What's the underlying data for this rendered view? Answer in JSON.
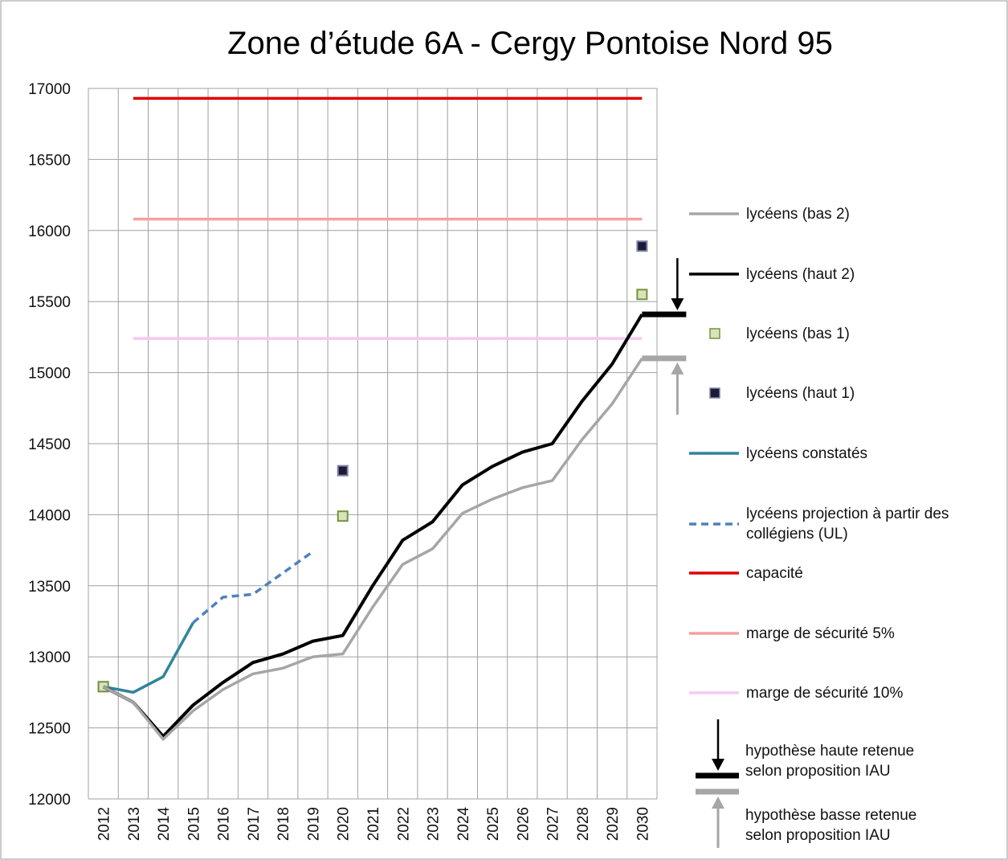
{
  "chart_data": {
    "type": "line",
    "title": "Zone d’étude 6A - Cergy Pontoise Nord 95",
    "categories": [
      "2012",
      "2013",
      "2014",
      "2015",
      "2016",
      "2017",
      "2018",
      "2019",
      "2020",
      "2021",
      "2022",
      "2023",
      "2024",
      "2025",
      "2026",
      "2027",
      "2028",
      "2029",
      "2030"
    ],
    "ylim": [
      12000,
      17000
    ],
    "yticks": [
      12000,
      12500,
      13000,
      13500,
      14000,
      14500,
      15000,
      15500,
      16000,
      16500,
      17000
    ],
    "grid": true,
    "series": [
      {
        "name": "lycéens (bas 2)",
        "color": "#a6a6a6",
        "style": "solid",
        "values": [
          12790,
          12680,
          12420,
          12620,
          12770,
          12880,
          12920,
          13000,
          13020,
          13350,
          13650,
          13760,
          14010,
          14110,
          14190,
          14240,
          14530,
          14780,
          15100
        ]
      },
      {
        "name": "lycéens (haut 2)",
        "color": "#000000",
        "style": "solid",
        "values": [
          12790,
          12680,
          12440,
          12660,
          12820,
          12960,
          13020,
          13110,
          13150,
          13500,
          13820,
          13950,
          14210,
          14340,
          14440,
          14500,
          14800,
          15060,
          15410
        ]
      },
      {
        "name": "lycéens (bas 1)",
        "color": "#d7e4bd",
        "edge_color": "#77933c",
        "style": "marker",
        "values": [
          12790,
          null,
          null,
          null,
          null,
          null,
          null,
          null,
          13990,
          null,
          null,
          null,
          null,
          null,
          null,
          null,
          null,
          null,
          15550
        ]
      },
      {
        "name": "lycéens (haut 1)",
        "color": "#1a1a3a",
        "edge_color": "#8080a0",
        "style": "marker",
        "values": [
          12790,
          null,
          null,
          null,
          null,
          null,
          null,
          null,
          14310,
          null,
          null,
          null,
          null,
          null,
          null,
          null,
          null,
          null,
          15890
        ]
      },
      {
        "name": "lycéens constatés",
        "color": "#31849b",
        "style": "solid",
        "values": [
          12790,
          12750,
          12860,
          13240,
          null,
          null,
          null,
          null,
          null,
          null,
          null,
          null,
          null,
          null,
          null,
          null,
          null,
          null,
          null
        ]
      },
      {
        "name": "lycéens projection à partir des collégiens (UL)",
        "color": "#4f81bd",
        "style": "dashed",
        "values": [
          null,
          null,
          null,
          13240,
          13420,
          13440,
          13590,
          13740,
          null,
          null,
          null,
          null,
          null,
          null,
          null,
          null,
          null,
          null,
          null
        ]
      },
      {
        "name": "capacité",
        "color": "#e00000",
        "style": "solid",
        "values": [
          null,
          16930,
          16930,
          16930,
          16930,
          16930,
          16930,
          16930,
          16930,
          16930,
          16930,
          16930,
          16930,
          16930,
          16930,
          16930,
          16930,
          16930,
          16930
        ]
      },
      {
        "name": "marge de sécurité 5%",
        "color": "#f4a0a0",
        "style": "solid",
        "values": [
          null,
          16080,
          16080,
          16080,
          16080,
          16080,
          16080,
          16080,
          16080,
          16080,
          16080,
          16080,
          16080,
          16080,
          16080,
          16080,
          16080,
          16080,
          16080
        ]
      },
      {
        "name": "marge de sécurité 10%",
        "color": "#f8c8f0",
        "style": "solid",
        "values": [
          null,
          15240,
          15240,
          15240,
          15240,
          15240,
          15240,
          15240,
          15240,
          15240,
          15240,
          15240,
          15240,
          15240,
          15240,
          15240,
          15240,
          15240,
          15240
        ]
      }
    ],
    "hypotheses": [
      {
        "label_lines": [
          "hypothèse haute retenue",
          "selon proposition IAU"
        ],
        "value": 15410,
        "color": "#000000",
        "arrow": "down"
      },
      {
        "label_lines": [
          "hypothèse basse retenue",
          "selon proposition IAU"
        ],
        "value": 15100,
        "color": "#a6a6a6",
        "arrow": "up"
      }
    ]
  }
}
